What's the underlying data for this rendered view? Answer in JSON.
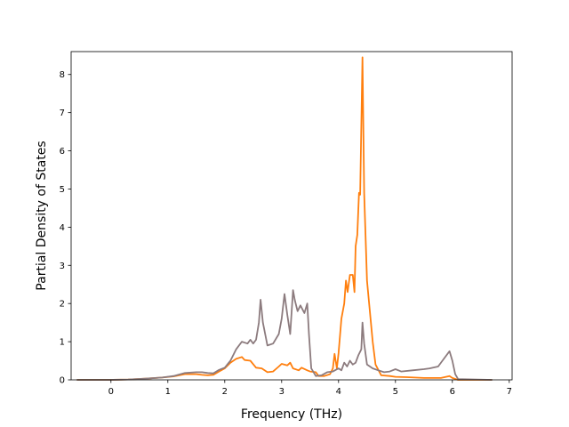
{
  "chart_data": {
    "type": "line",
    "title": "",
    "xlabel": "Frequency (THz)",
    "ylabel": "Partial Density of States",
    "xlim": [
      -0.7,
      7.05
    ],
    "ylim": [
      0,
      8.6
    ],
    "xticks": [
      0,
      1,
      2,
      3,
      4,
      5,
      6,
      7
    ],
    "yticks": [
      0,
      1,
      2,
      3,
      4,
      5,
      6,
      7,
      8
    ],
    "grid": false,
    "legend": "none",
    "series": [
      {
        "color": "#ff7f0e",
        "points": [
          [
            -0.6,
            0
          ],
          [
            0.0,
            0
          ],
          [
            0.3,
            0.01
          ],
          [
            0.6,
            0.03
          ],
          [
            0.9,
            0.06
          ],
          [
            1.1,
            0.09
          ],
          [
            1.3,
            0.15
          ],
          [
            1.5,
            0.15
          ],
          [
            1.6,
            0.13
          ],
          [
            1.7,
            0.12
          ],
          [
            1.8,
            0.13
          ],
          [
            1.9,
            0.22
          ],
          [
            2.0,
            0.3
          ],
          [
            2.1,
            0.45
          ],
          [
            2.2,
            0.55
          ],
          [
            2.3,
            0.6
          ],
          [
            2.35,
            0.52
          ],
          [
            2.45,
            0.5
          ],
          [
            2.55,
            0.32
          ],
          [
            2.65,
            0.3
          ],
          [
            2.75,
            0.2
          ],
          [
            2.85,
            0.22
          ],
          [
            2.95,
            0.35
          ],
          [
            3.0,
            0.42
          ],
          [
            3.1,
            0.38
          ],
          [
            3.15,
            0.45
          ],
          [
            3.2,
            0.3
          ],
          [
            3.3,
            0.25
          ],
          [
            3.35,
            0.32
          ],
          [
            3.45,
            0.25
          ],
          [
            3.5,
            0.22
          ],
          [
            3.6,
            0.2
          ],
          [
            3.65,
            0.1
          ],
          [
            3.75,
            0.1
          ],
          [
            3.85,
            0.15
          ],
          [
            3.9,
            0.3
          ],
          [
            3.93,
            0.68
          ],
          [
            3.97,
            0.3
          ],
          [
            4.0,
            0.7
          ],
          [
            4.05,
            1.6
          ],
          [
            4.1,
            2.0
          ],
          [
            4.13,
            2.6
          ],
          [
            4.16,
            2.3
          ],
          [
            4.2,
            2.75
          ],
          [
            4.25,
            2.75
          ],
          [
            4.28,
            2.3
          ],
          [
            4.3,
            3.5
          ],
          [
            4.33,
            3.8
          ],
          [
            4.36,
            4.9
          ],
          [
            4.38,
            4.85
          ],
          [
            4.42,
            8.45
          ],
          [
            4.45,
            4.9
          ],
          [
            4.5,
            2.6
          ],
          [
            4.55,
            1.8
          ],
          [
            4.6,
            1.0
          ],
          [
            4.65,
            0.4
          ],
          [
            4.75,
            0.12
          ],
          [
            4.9,
            0.1
          ],
          [
            5.0,
            0.08
          ],
          [
            5.2,
            0.07
          ],
          [
            5.5,
            0.05
          ],
          [
            5.8,
            0.05
          ],
          [
            5.95,
            0.1
          ],
          [
            6.0,
            0.05
          ],
          [
            6.1,
            0
          ],
          [
            6.7,
            0
          ]
        ]
      },
      {
        "color": "#8c7b7e",
        "points": [
          [
            -0.6,
            0
          ],
          [
            0.0,
            0
          ],
          [
            0.3,
            0.01
          ],
          [
            0.6,
            0.03
          ],
          [
            0.9,
            0.06
          ],
          [
            1.1,
            0.1
          ],
          [
            1.3,
            0.18
          ],
          [
            1.5,
            0.2
          ],
          [
            1.6,
            0.2
          ],
          [
            1.7,
            0.18
          ],
          [
            1.8,
            0.17
          ],
          [
            1.9,
            0.26
          ],
          [
            2.0,
            0.32
          ],
          [
            2.1,
            0.5
          ],
          [
            2.2,
            0.8
          ],
          [
            2.3,
            1.0
          ],
          [
            2.4,
            0.95
          ],
          [
            2.45,
            1.05
          ],
          [
            2.5,
            0.95
          ],
          [
            2.55,
            1.05
          ],
          [
            2.6,
            1.5
          ],
          [
            2.63,
            2.1
          ],
          [
            2.67,
            1.5
          ],
          [
            2.75,
            0.9
          ],
          [
            2.85,
            0.95
          ],
          [
            2.95,
            1.2
          ],
          [
            3.0,
            1.6
          ],
          [
            3.05,
            2.25
          ],
          [
            3.1,
            1.7
          ],
          [
            3.15,
            1.2
          ],
          [
            3.2,
            2.35
          ],
          [
            3.23,
            2.1
          ],
          [
            3.28,
            1.8
          ],
          [
            3.33,
            1.95
          ],
          [
            3.4,
            1.75
          ],
          [
            3.45,
            2.0
          ],
          [
            3.48,
            1.2
          ],
          [
            3.52,
            0.3
          ],
          [
            3.6,
            0.1
          ],
          [
            3.7,
            0.12
          ],
          [
            3.8,
            0.2
          ],
          [
            3.9,
            0.22
          ],
          [
            4.0,
            0.3
          ],
          [
            4.05,
            0.25
          ],
          [
            4.1,
            0.45
          ],
          [
            4.15,
            0.35
          ],
          [
            4.2,
            0.5
          ],
          [
            4.25,
            0.4
          ],
          [
            4.3,
            0.45
          ],
          [
            4.35,
            0.65
          ],
          [
            4.4,
            0.8
          ],
          [
            4.42,
            1.5
          ],
          [
            4.45,
            0.95
          ],
          [
            4.5,
            0.4
          ],
          [
            4.6,
            0.3
          ],
          [
            4.7,
            0.25
          ],
          [
            4.8,
            0.2
          ],
          [
            4.9,
            0.22
          ],
          [
            5.0,
            0.28
          ],
          [
            5.1,
            0.22
          ],
          [
            5.3,
            0.25
          ],
          [
            5.5,
            0.28
          ],
          [
            5.6,
            0.3
          ],
          [
            5.75,
            0.35
          ],
          [
            5.85,
            0.55
          ],
          [
            5.95,
            0.75
          ],
          [
            6.0,
            0.5
          ],
          [
            6.05,
            0.15
          ],
          [
            6.1,
            0.02
          ],
          [
            6.7,
            0
          ]
        ]
      }
    ]
  }
}
